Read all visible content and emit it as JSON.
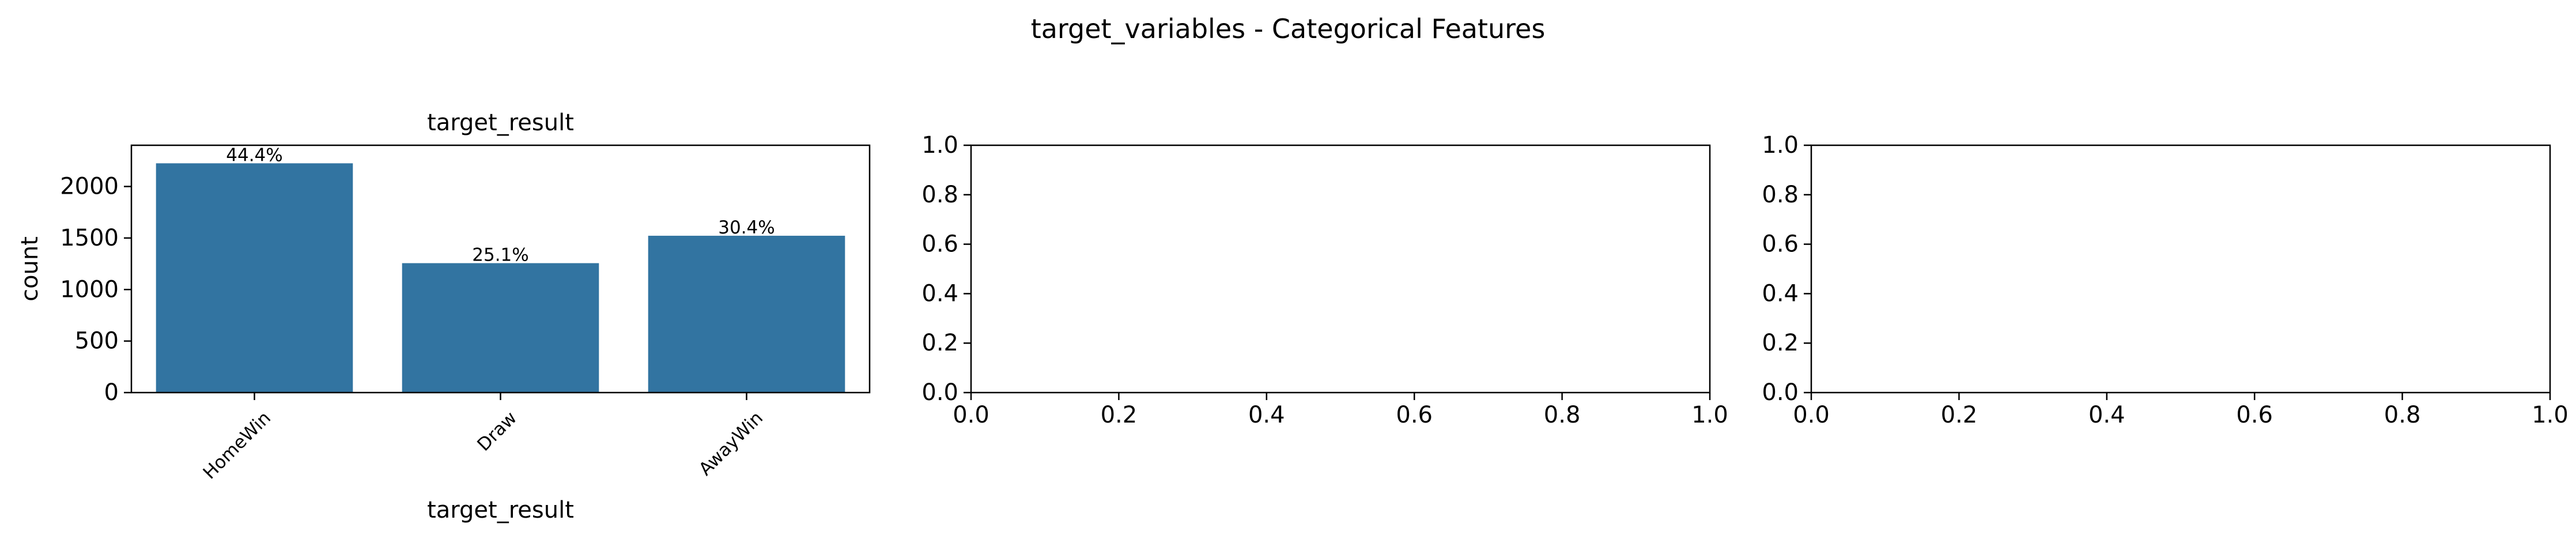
{
  "suptitle": "target_variables - Categorical Features",
  "chart_data": [
    {
      "type": "bar",
      "title": "target_result",
      "xlabel": "target_result",
      "ylabel": "count",
      "categories": [
        "HomeWin",
        "Draw",
        "AwayWin"
      ],
      "values": [
        2225,
        1256,
        1522
      ],
      "data_labels": [
        "44.4%",
        "25.1%",
        "30.4%"
      ],
      "ylim": [
        0,
        2400
      ],
      "yticks": [
        0,
        500,
        1000,
        1500,
        2000
      ],
      "ytick_labels": [
        "0",
        "500",
        "1000",
        "1500",
        "2000"
      ],
      "bar_color": "#3274a1",
      "grid": false
    },
    {
      "type": "bar",
      "title": "",
      "xlabel": "",
      "ylabel": "",
      "categories": [],
      "values": [],
      "xlim": [
        0,
        1
      ],
      "ylim": [
        0,
        1
      ],
      "xticks": [
        0,
        0.2,
        0.4,
        0.6,
        0.8,
        1
      ],
      "xtick_labels": [
        "0.0",
        "0.2",
        "0.4",
        "0.6",
        "0.8",
        "1.0"
      ],
      "yticks": [
        0,
        0.2,
        0.4,
        0.6,
        0.8,
        1
      ],
      "ytick_labels": [
        "0.0",
        "0.2",
        "0.4",
        "0.6",
        "0.8",
        "1.0"
      ],
      "grid": false
    },
    {
      "type": "bar",
      "title": "",
      "xlabel": "",
      "ylabel": "",
      "categories": [],
      "values": [],
      "xlim": [
        0,
        1
      ],
      "ylim": [
        0,
        1
      ],
      "xticks": [
        0,
        0.2,
        0.4,
        0.6,
        0.8,
        1
      ],
      "xtick_labels": [
        "0.0",
        "0.2",
        "0.4",
        "0.6",
        "0.8",
        "1.0"
      ],
      "yticks": [
        0,
        0.2,
        0.4,
        0.6,
        0.8,
        1
      ],
      "ytick_labels": [
        "0.0",
        "0.2",
        "0.4",
        "0.6",
        "0.8",
        "1.0"
      ],
      "grid": false
    }
  ]
}
